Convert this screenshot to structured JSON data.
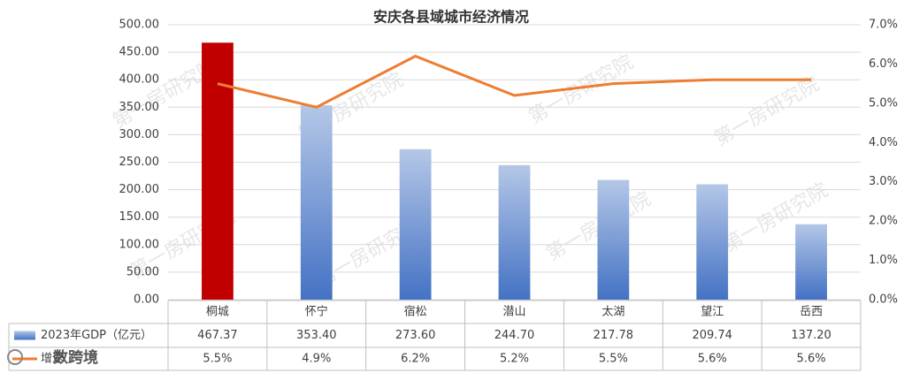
{
  "chart_data": {
    "type": "bar-line",
    "title": "安庆各县域城市经济情况",
    "categories": [
      "桐城",
      "怀宁",
      "宿松",
      "潜山",
      "太湖",
      "望江",
      "岳西"
    ],
    "series": [
      {
        "name": "2023年GDP（亿元）",
        "type": "bar",
        "color": "#4472c4",
        "colors": [
          "#c00000",
          "#4472c4",
          "#4472c4",
          "#4472c4",
          "#4472c4",
          "#4472c4",
          "#4472c4"
        ],
        "values": [
          467.37,
          353.4,
          273.6,
          244.7,
          217.78,
          209.74,
          137.2
        ],
        "value_labels": [
          "467.37",
          "353.40",
          "273.60",
          "244.70",
          "217.78",
          "209.74",
          "137.20"
        ]
      },
      {
        "name": "增速",
        "type": "line",
        "axis": "y2",
        "color": "#ed7d31",
        "values": [
          5.5,
          4.9,
          6.2,
          5.2,
          5.5,
          5.6,
          5.6
        ],
        "value_labels": [
          "5.5%",
          "4.9%",
          "6.2%",
          "5.2%",
          "5.5%",
          "5.6%",
          "5.6%"
        ]
      }
    ],
    "ylim": [
      0,
      500
    ],
    "yticks": [
      {
        "value": 0,
        "label": "0.00"
      },
      {
        "value": 50,
        "label": "50.00"
      },
      {
        "value": 100,
        "label": "100.00"
      },
      {
        "value": 150,
        "label": "150.00"
      },
      {
        "value": 200,
        "label": "200.00"
      },
      {
        "value": 250,
        "label": "250.00"
      },
      {
        "value": 300,
        "label": "300.00"
      },
      {
        "value": 350,
        "label": "350.00"
      },
      {
        "value": 400,
        "label": "400.00"
      },
      {
        "value": 450,
        "label": "450.00"
      },
      {
        "value": 500,
        "label": "500.00"
      }
    ],
    "y2lim": [
      0,
      7
    ],
    "y2ticks": [
      {
        "value": 0,
        "label": "0.0%"
      },
      {
        "value": 1,
        "label": "1.0%"
      },
      {
        "value": 2,
        "label": "2.0%"
      },
      {
        "value": 3,
        "label": "3.0%"
      },
      {
        "value": 4,
        "label": "4.0%"
      },
      {
        "value": 5,
        "label": "5.0%"
      },
      {
        "value": 6,
        "label": "6.0%"
      },
      {
        "value": 7,
        "label": "7.0%"
      }
    ],
    "grid": true,
    "data_table": true,
    "watermark": "第一房研究院",
    "logo_text": "数跨境"
  }
}
